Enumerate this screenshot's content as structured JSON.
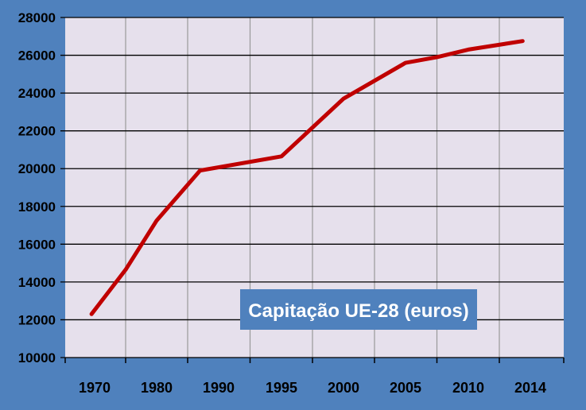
{
  "chart_data": {
    "type": "line",
    "title": "",
    "xlabel": "",
    "ylabel": "",
    "categories": [
      "1970",
      "1980",
      "1990",
      "1995",
      "2000",
      "2005",
      "2010",
      "2014"
    ],
    "x": [
      1969.5,
      1975,
      1980,
      1987,
      1995,
      2000,
      2005,
      2007.5,
      2010,
      2013.5
    ],
    "series": [
      {
        "values": [
          12300,
          14650,
          17250,
          19900,
          20650,
          23700,
          25600,
          25900,
          26300,
          26750
        ],
        "color": "#c00000"
      }
    ],
    "ylim": [
      10000,
      28000
    ],
    "yticks": [
      10000,
      12000,
      14000,
      16000,
      18000,
      20000,
      22000,
      24000,
      26000,
      28000
    ],
    "grid": true,
    "legend": "none",
    "annotation": {
      "text": "Capitação UE-28 (euros)",
      "placement": "lower-right",
      "background": "#4f81bd",
      "color": "#ffffff"
    },
    "colors": {
      "frame": "#4f81bd",
      "plot_background": "#e6e0ec",
      "gridline": "#000000",
      "vgrid": "#999999"
    }
  }
}
